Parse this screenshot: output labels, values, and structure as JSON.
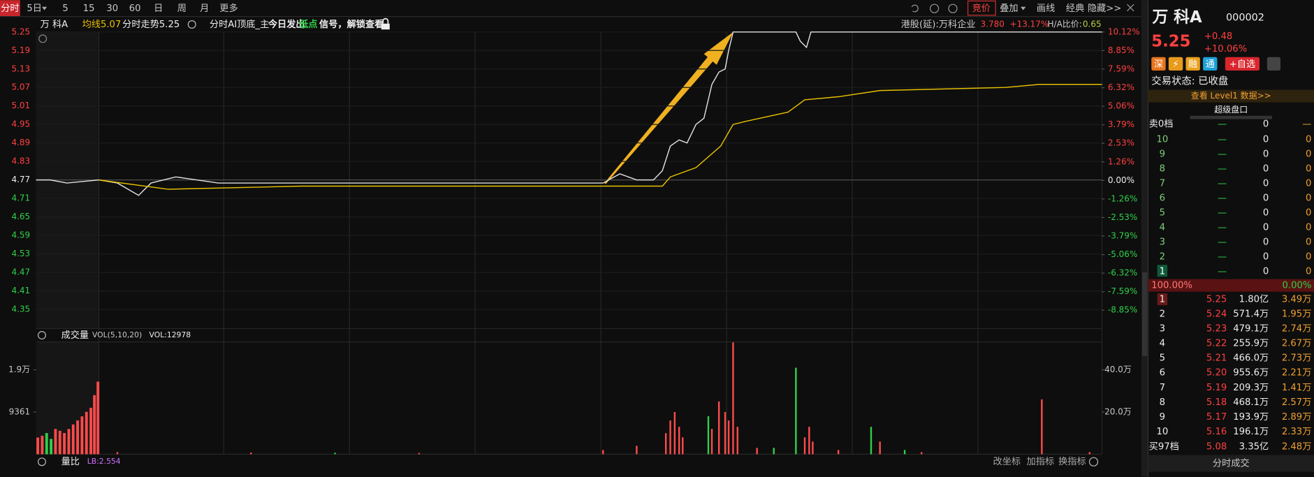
{
  "toolbar": {
    "tabs": [
      "分时",
      "5日",
      "5",
      "15",
      "30",
      "60",
      "日",
      "周",
      "月",
      "更多"
    ],
    "tools": [
      "竞价",
      "叠加",
      "画线",
      "经典",
      "隐藏>>"
    ]
  },
  "header": {
    "name": "万 科A",
    "avg_label": "均线",
    "avg_value": 5.07,
    "trend_label": "分时走势",
    "trend_value": 5.25,
    "indicator": "分时AI顶底_主",
    "signal_prefix": "今日发出",
    "signal_word": "低点",
    "signal_suffix": "信号，解锁查看",
    "hk_label": "港股(延):万科企业",
    "hk_price": "3.780",
    "hk_change": "+13.17%",
    "ha_label": "H/A比价:",
    "ha_value": 0.65
  },
  "chart_data": [
    {
      "type": "line",
      "xlim": [
        0,
        1205
      ],
      "ylim": [
        4.288,
        5.25
      ],
      "yticks": [
        5.25,
        5.19,
        5.13,
        5.07,
        5.01,
        4.95,
        4.89,
        4.83,
        4.77,
        4.71,
        4.65,
        4.59,
        4.53,
        4.47,
        4.41,
        4.35
      ],
      "y2lim": [
        -10.1,
        10.12
      ],
      "y2ticks": [
        {
          "value": 10.12,
          "label": "10.12%"
        },
        {
          "value": 8.85,
          "label": "8.85%"
        },
        {
          "value": 7.59,
          "label": "7.59%"
        },
        {
          "value": 6.32,
          "label": "6.32%"
        },
        {
          "value": 5.06,
          "label": "5.06%"
        },
        {
          "value": 3.79,
          "label": "3.79%"
        },
        {
          "value": 2.53,
          "label": "2.53%"
        },
        {
          "value": 1.26,
          "label": "1.26%"
        },
        {
          "value": 0,
          "label": "0.00%"
        },
        {
          "value": -1.26,
          "label": "-1.26%"
        },
        {
          "value": -2.53,
          "label": "-2.53%"
        },
        {
          "value": -3.79,
          "label": "-3.79%"
        },
        {
          "value": -5.06,
          "label": "-5.06%"
        },
        {
          "value": -6.32,
          "label": "-6.32%"
        },
        {
          "value": -7.59,
          "label": "-7.59%"
        },
        {
          "value": -8.85,
          "label": "-8.85%"
        }
      ],
      "grid": true,
      "series": [
        {
          "color": "#e0e0e0",
          "x": [
            0,
            16,
            35,
            71,
            92,
            116,
            130,
            158,
            206,
            291,
            404,
            528,
            641,
            660,
            679,
            698,
            708,
            717,
            727,
            736,
            746,
            755,
            764,
            772,
            779,
            783,
            788,
            859,
            864,
            871,
            876,
            1205
          ],
          "values": [
            4.77,
            4.77,
            4.76,
            4.77,
            4.76,
            4.72,
            4.76,
            4.78,
            4.76,
            4.76,
            4.76,
            4.76,
            4.76,
            4.79,
            4.77,
            4.77,
            4.8,
            4.88,
            4.9,
            4.89,
            4.95,
            4.97,
            5.08,
            5.12,
            5.13,
            5.19,
            5.25,
            5.25,
            5.22,
            5.2,
            5.25,
            5.25
          ]
        },
        {
          "color": "#e8c000",
          "x": [
            71,
            149,
            300,
            708,
            717,
            746,
            774,
            788,
            802,
            850,
            869,
            907,
            954,
            1096,
            1134,
            1205
          ],
          "values": [
            4.77,
            4.74,
            4.75,
            4.75,
            4.78,
            4.81,
            4.88,
            4.95,
            4.96,
            4.99,
            5.03,
            5.04,
            5.06,
            5.07,
            5.08,
            5.08
          ]
        }
      ]
    },
    {
      "type": "bar",
      "title": "成交量",
      "subtitle": "VOL(5,10,20)",
      "annotation": "VOL:12978",
      "xlim": [
        0,
        1205
      ],
      "ylim": [
        0,
        24898
      ],
      "yticks": [
        {
          "value": 18722,
          "label": "1.9万"
        },
        9361
      ],
      "y2lim": [
        0,
        53.2
      ],
      "y2ticks": [
        {
          "value": 40,
          "label": "40.0万"
        },
        {
          "value": 20,
          "label": "20.0万"
        }
      ],
      "series": [
        {
          "color": "#ff4b4b",
          "axis": "y",
          "x": [
            2,
            7,
            22,
            27,
            32,
            37,
            42,
            47,
            52,
            57,
            62,
            66,
            70
          ],
          "values": [
            3700,
            4100,
            5600,
            5200,
            4700,
            5600,
            6600,
            7500,
            8400,
            9400,
            10300,
            13100,
            16100
          ]
        },
        {
          "color": "#2fd04a",
          "axis": "y",
          "x": [
            12,
            17
          ],
          "values": [
            4700,
            3400
          ]
        },
        {
          "color": "#ff4b4b",
          "axis": "y2",
          "x": [
            92,
            243,
            433,
            641,
            679,
            712,
            717,
            722,
            727,
            731,
            764,
            772,
            779,
            783,
            788,
            793,
            815,
            869,
            874,
            878,
            907,
            954,
            1001,
            1137,
            1191
          ],
          "values": [
            1,
            0.8,
            0.6,
            2,
            4,
            10,
            16,
            20,
            13,
            8,
            12,
            25,
            20,
            16,
            53,
            13,
            3,
            8,
            13,
            6,
            2,
            6,
            1,
            26,
            1
          ]
        },
        {
          "color": "#2fd04a",
          "axis": "y2",
          "x": [
            338,
            760,
            834,
            859,
            944,
            982
          ],
          "values": [
            0.7,
            18,
            3,
            41,
            13,
            2
          ]
        }
      ]
    }
  ],
  "sub_panel": {
    "title": "量比",
    "value_label": "LB:2.554",
    "buttons": [
      "改坐标",
      "加指标",
      "换指标"
    ]
  },
  "quote": {
    "name": "万 科A",
    "code": "000002",
    "price": 5.25,
    "change": "+0.48",
    "change_pct": "+10.06%",
    "badges": [
      "深",
      "⚡",
      "融",
      "通"
    ],
    "watch": "+自选",
    "status": "交易状态: 已收盘",
    "level1": "查看 Level1 数据>>",
    "depth_title": "超级盘口",
    "sell_total": {
      "label": "卖0档",
      "price": "—",
      "volume": 0,
      "count": "—"
    },
    "sell": [
      {
        "level": "10",
        "price": "—",
        "volume": 0,
        "count": 0
      },
      {
        "level": "9",
        "price": "—",
        "volume": 0,
        "count": 0
      },
      {
        "level": "8",
        "price": "—",
        "volume": 0,
        "count": 0
      },
      {
        "level": "7",
        "price": "—",
        "volume": 0,
        "count": 0
      },
      {
        "level": "6",
        "price": "—",
        "volume": 0,
        "count": 0
      },
      {
        "level": "5",
        "price": "—",
        "volume": 0,
        "count": 0
      },
      {
        "level": "4",
        "price": "—",
        "volume": 0,
        "count": 0
      },
      {
        "level": "3",
        "price": "—",
        "volume": 0,
        "count": 0
      },
      {
        "level": "2",
        "price": "—",
        "volume": 0,
        "count": 0
      },
      {
        "level": "1",
        "price": "—",
        "volume": 0,
        "count": 0
      }
    ],
    "ratio_buy": "100.00%",
    "ratio_sell": "0.00%",
    "buy": [
      {
        "level": "1",
        "price": "5.25",
        "volume": "1.80亿",
        "count": "3.49万"
      },
      {
        "level": "2",
        "price": "5.24",
        "volume": "571.4万",
        "count": "1.95万"
      },
      {
        "level": "3",
        "price": "5.23",
        "volume": "479.1万",
        "count": "2.74万"
      },
      {
        "level": "4",
        "price": "5.22",
        "volume": "255.9万",
        "count": "2.67万"
      },
      {
        "level": "5",
        "price": "5.21",
        "volume": "466.0万",
        "count": "2.73万"
      },
      {
        "level": "6",
        "price": "5.20",
        "volume": "955.6万",
        "count": "2.21万"
      },
      {
        "level": "7",
        "price": "5.19",
        "volume": "209.3万",
        "count": "1.41万"
      },
      {
        "level": "8",
        "price": "5.18",
        "volume": "468.1万",
        "count": "2.57万"
      },
      {
        "level": "9",
        "price": "5.17",
        "volume": "193.9万",
        "count": "2.89万"
      },
      {
        "level": "10",
        "price": "5.16",
        "volume": "196.1万",
        "count": "2.33万"
      }
    ],
    "buy_total": {
      "label": "买97档",
      "price": "5.08",
      "volume": "3.35亿",
      "count": "2.48万"
    },
    "trades": "分时成交"
  }
}
